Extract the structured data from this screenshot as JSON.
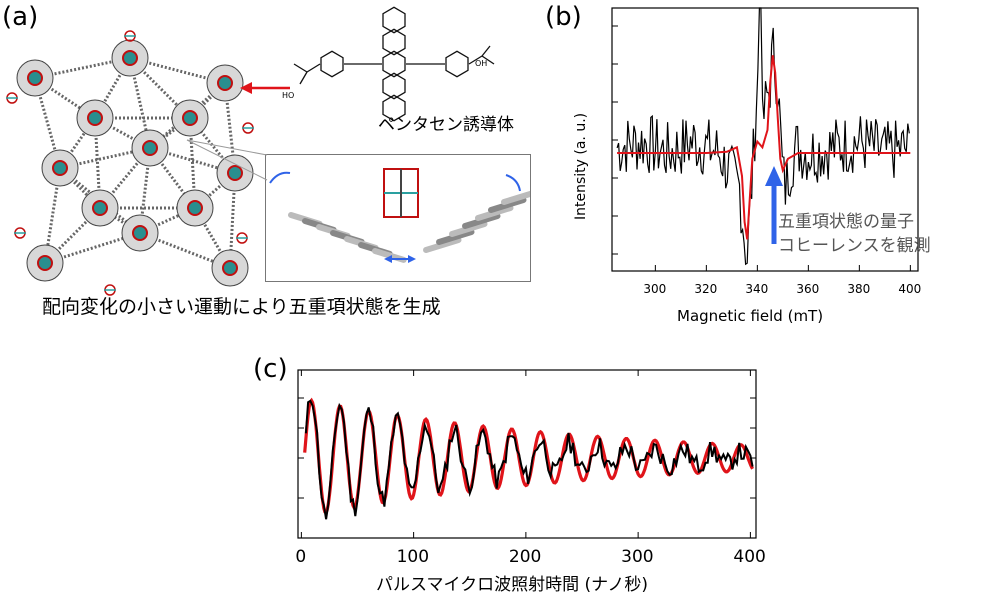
{
  "panel_a": {
    "label": "(a)",
    "molecule_name": "ペンタセン誘導体",
    "acid_label": "OH",
    "acid_label_left": "HO",
    "caption": "配向変化の小さい運動により五重項状態を生成"
  },
  "panel_b": {
    "label": "(b)",
    "annotation_line1": "五重項状態の量子",
    "annotation_line2": "コヒーレンスを観測"
  },
  "panel_c": {
    "label": "(c)"
  },
  "colors": {
    "fit": "#e0141a",
    "data": "#000000",
    "arrow": "#2f63e8",
    "annotation": "#555555"
  },
  "chart_data": [
    {
      "type": "line",
      "xlabel": "Magnetic field (mT)",
      "ylabel": "Intensity (a. u.)",
      "xlim": [
        283,
        403
      ],
      "x_ticks": [
        300,
        320,
        340,
        360,
        380,
        400
      ],
      "series": [
        {
          "role": "data",
          "x": [
            285,
            295,
            305,
            315,
            325,
            330,
            333,
            335,
            336,
            338,
            340,
            341,
            342,
            343,
            345,
            346,
            347,
            348,
            349,
            350,
            351,
            353,
            355,
            360,
            370,
            380,
            390,
            400
          ],
          "values": [
            0.05,
            0.1,
            0.0,
            0.1,
            0.0,
            -0.2,
            -0.3,
            -0.75,
            -0.9,
            -0.2,
            0.6,
            1.0,
            0.2,
            0.4,
            0.6,
            0.9,
            0.75,
            0.6,
            0.2,
            -0.2,
            -0.3,
            -0.1,
            0.05,
            0.0,
            0.05,
            0.1,
            0.0,
            0.05
          ]
        },
        {
          "role": "fit",
          "x": [
            285,
            300,
            320,
            328,
            332,
            334,
            335,
            336,
            338,
            340,
            342,
            344,
            345,
            346,
            347,
            348,
            349,
            350,
            352,
            356,
            360,
            380,
            400
          ],
          "values": [
            0,
            0,
            0,
            0.01,
            0.05,
            -0.2,
            -0.6,
            -0.75,
            -0.05,
            0.1,
            0.05,
            0.2,
            0.6,
            0.85,
            0.7,
            0.3,
            -0.05,
            -0.15,
            -0.05,
            0,
            0,
            0,
            0
          ]
        }
      ]
    },
    {
      "type": "line",
      "xlabel": "パルスマイクロ波照射時間 (ナノ秒)",
      "xlim": [
        -3,
        405
      ],
      "x_ticks": [
        0,
        100,
        200,
        300,
        400
      ],
      "series": [
        {
          "role": "fit",
          "model": "damped_cosine",
          "amplitude": 0.85,
          "period_ns": 25.5,
          "decay_ns": 260,
          "offset": 0.0
        },
        {
          "role": "data",
          "model": "noisy_damped_cosine",
          "amplitude": 0.95,
          "period_ns": 25.5,
          "decay_ns": 160,
          "offset": 0.0
        }
      ]
    }
  ]
}
